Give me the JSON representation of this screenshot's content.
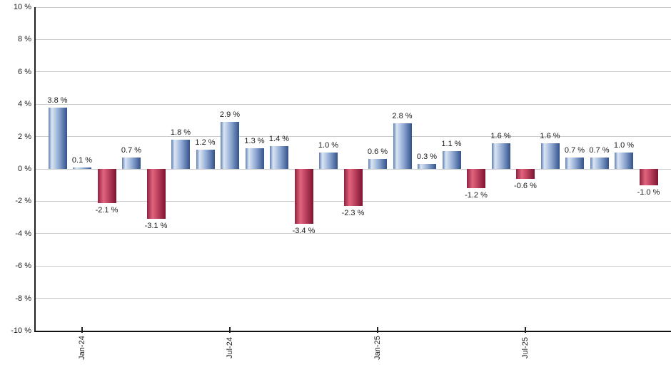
{
  "chart_data": {
    "type": "bar",
    "title": "",
    "xlabel": "",
    "ylabel": "",
    "ylim": [
      -10,
      10
    ],
    "ytick_step": 2,
    "grid": true,
    "legend_position": "none",
    "ytick_labels": [
      "10 %",
      "8 %",
      "6 %",
      "4 %",
      "2 %",
      "0 %",
      "-2 %",
      "-4 %",
      "-6 %",
      "-8 %",
      "-10 %"
    ],
    "values": [
      3.8,
      0.1,
      -2.1,
      0.7,
      -3.1,
      1.8,
      1.2,
      2.9,
      1.3,
      1.4,
      -3.4,
      1.0,
      -2.3,
      0.6,
      2.8,
      0.3,
      1.1,
      -1.2,
      1.6,
      -0.6,
      1.6,
      0.7,
      0.7,
      1.0,
      -1.0
    ],
    "bar_labels": [
      "3.8 %",
      "0.1 %",
      "-2.1 %",
      "0.7 %",
      "-3.1 %",
      "1.8 %",
      "1.2 %",
      "2.9 %",
      "1.3 %",
      "1.4 %",
      "-3.4 %",
      "1.0 %",
      "-2.3 %",
      "0.6 %",
      "2.8 %",
      "0.3 %",
      "1.1 %",
      "-1.2 %",
      "1.6 %",
      "-0.6 %",
      "1.6 %",
      "0.7 %",
      "0.7 %",
      "1.0 %",
      "-1.0 %"
    ],
    "xticks": [
      {
        "bar_index": 1,
        "label": "Jan-24"
      },
      {
        "bar_index": 7,
        "label": "Jul-24"
      },
      {
        "bar_index": 13,
        "label": "Jan-25"
      },
      {
        "bar_index": 19,
        "label": "Jul-25"
      }
    ],
    "colors": {
      "positive_bar_gradient": [
        "#5e7fb3",
        "#dbe6f4",
        "#8fa9d3",
        "#33528b"
      ],
      "negative_bar_gradient": [
        "#8d2240",
        "#e2647f",
        "#b23a58",
        "#7c1430"
      ],
      "gridline": "#cbcbcb",
      "axis": "#222222",
      "label_text": "#1a1a1a"
    }
  }
}
